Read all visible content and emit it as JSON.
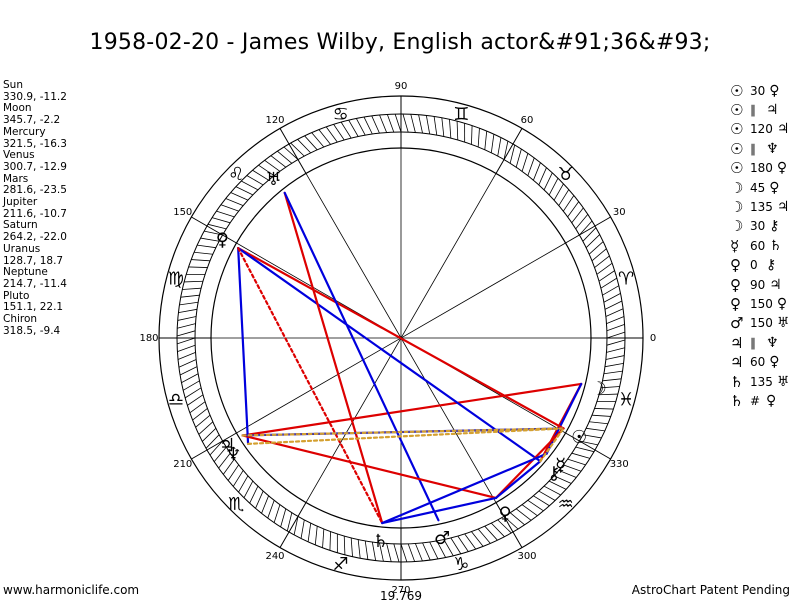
{
  "title": "1958-02-20 - James Wilby, English actor&#91;36&#93;",
  "planets": [
    {
      "name": "Sun",
      "pos": "330.9, -11.2"
    },
    {
      "name": "Moon",
      "pos": "345.7, -2.2"
    },
    {
      "name": "Mercury",
      "pos": "321.5, -16.3"
    },
    {
      "name": "Venus",
      "pos": "300.7, -12.9"
    },
    {
      "name": "Mars",
      "pos": "281.6, -23.5"
    },
    {
      "name": "Jupiter",
      "pos": "211.6, -10.7"
    },
    {
      "name": "Saturn",
      "pos": "264.2, -22.0"
    },
    {
      "name": "Uranus",
      "pos": "128.7, 18.7"
    },
    {
      "name": "Neptune",
      "pos": "214.7, -11.4"
    },
    {
      "name": "Pluto",
      "pos": "151.1, 22.1"
    },
    {
      "name": "Chiron",
      "pos": "318.5, -9.4"
    }
  ],
  "aspects": [
    {
      "p1": "☉",
      "asp": "30",
      "p2": "♀"
    },
    {
      "p1": "☉",
      "asp": "∥",
      "p2": "♃"
    },
    {
      "p1": "☉",
      "asp": "120",
      "p2": "♃"
    },
    {
      "p1": "☉",
      "asp": "∥",
      "p2": "♆"
    },
    {
      "p1": "☉",
      "asp": "180",
      "p2": "♀"
    },
    {
      "p1": "☽",
      "asp": "45",
      "p2": "♀"
    },
    {
      "p1": "☽",
      "asp": "135",
      "p2": "♃"
    },
    {
      "p1": "☽",
      "asp": "30",
      "p2": "⚷"
    },
    {
      "p1": "☿",
      "asp": "60",
      "p2": "♄"
    },
    {
      "p1": "♀",
      "asp": "0",
      "p2": "⚷"
    },
    {
      "p1": "♀",
      "asp": "90",
      "p2": "♃"
    },
    {
      "p1": "♀",
      "asp": "150",
      "p2": "♀"
    },
    {
      "p1": "♂",
      "asp": "150",
      "p2": "♅"
    },
    {
      "p1": "♃",
      "asp": "∥",
      "p2": "♆"
    },
    {
      "p1": "♃",
      "asp": "60",
      "p2": "♀"
    },
    {
      "p1": "♄",
      "asp": "135",
      "p2": "♅"
    },
    {
      "p1": "♄",
      "asp": "#",
      "p2": "♀"
    }
  ],
  "footer": {
    "left": "www.harmoniclife.com",
    "right": "AstroChart Patent Pending"
  },
  "chart_data": {
    "type": "scatter",
    "subtype": "astrological-wheel",
    "degree_labels": [
      "0",
      "30",
      "60",
      "90",
      "120",
      "150",
      "180",
      "210",
      "240",
      "270",
      "300",
      "330"
    ],
    "zodiac_signs": [
      {
        "glyph": "♈",
        "start": 0
      },
      {
        "glyph": "♉",
        "start": 30
      },
      {
        "glyph": "♊",
        "start": 60
      },
      {
        "glyph": "♋",
        "start": 90
      },
      {
        "glyph": "♌",
        "start": 120
      },
      {
        "glyph": "♍",
        "start": 150
      },
      {
        "glyph": "♎",
        "start": 180
      },
      {
        "glyph": "♏",
        "start": 210
      },
      {
        "glyph": "♐",
        "start": 240
      },
      {
        "glyph": "♑",
        "start": 270
      },
      {
        "glyph": "♒",
        "start": 300
      },
      {
        "glyph": "♓",
        "start": 330
      }
    ],
    "bodies": [
      {
        "name": "Sun",
        "glyph": "☉",
        "lon": 330.9
      },
      {
        "name": "Moon",
        "glyph": "☽",
        "lon": 345.7
      },
      {
        "name": "Mercury",
        "glyph": "☿",
        "lon": 321.5
      },
      {
        "name": "Venus",
        "glyph": "♀",
        "lon": 300.7
      },
      {
        "name": "Mars",
        "glyph": "♂",
        "lon": 281.6
      },
      {
        "name": "Jupiter",
        "glyph": "♃",
        "lon": 211.6
      },
      {
        "name": "Saturn",
        "glyph": "♄",
        "lon": 264.2
      },
      {
        "name": "Uranus",
        "glyph": "♅",
        "lon": 128.7
      },
      {
        "name": "Neptune",
        "glyph": "♆",
        "lon": 214.7
      },
      {
        "name": "Pluto",
        "glyph": "♀",
        "lon": 151.1
      },
      {
        "name": "Chiron",
        "glyph": "⚷",
        "lon": 318.5
      }
    ],
    "aspect_lines": [
      {
        "a": "Moon",
        "b": "Jupiter",
        "color": "#dd0000",
        "style": "solid"
      },
      {
        "a": "Moon",
        "b": "Chiron",
        "color": "#dd0000",
        "style": "solid"
      },
      {
        "a": "Moon",
        "b": "Mercury",
        "color": "#0000dd",
        "style": "solid"
      },
      {
        "a": "Pluto",
        "b": "Sun",
        "color": "#dd0000",
        "style": "solid"
      },
      {
        "a": "Pluto",
        "b": "Neptune",
        "color": "#0000dd",
        "style": "solid"
      },
      {
        "a": "Pluto",
        "b": "Chiron",
        "color": "#0000dd",
        "style": "solid"
      },
      {
        "a": "Pluto",
        "b": "Saturn",
        "color": "#dd0000",
        "style": "dashed"
      },
      {
        "a": "Uranus",
        "b": "Saturn",
        "color": "#dd0000",
        "style": "solid"
      },
      {
        "a": "Uranus",
        "b": "Mars",
        "color": "#0000dd",
        "style": "solid"
      },
      {
        "a": "Jupiter",
        "b": "Venus",
        "color": "#dd0000",
        "style": "solid"
      },
      {
        "a": "Jupiter",
        "b": "Sun",
        "color": "#0000dd",
        "style": "solid"
      },
      {
        "a": "Jupiter",
        "b": "Sun",
        "color": "#d4a030",
        "style": "dashed"
      },
      {
        "a": "Neptune",
        "b": "Sun",
        "color": "#d4a030",
        "style": "dashed"
      },
      {
        "a": "Venus",
        "b": "Sun",
        "color": "#dd0000",
        "style": "solid"
      },
      {
        "a": "Venus",
        "b": "Chiron",
        "color": "#0000dd",
        "style": "solid"
      },
      {
        "a": "Saturn",
        "b": "Venus",
        "color": "#0000dd",
        "style": "solid"
      },
      {
        "a": "Saturn",
        "b": "Mercury",
        "color": "#0000dd",
        "style": "solid"
      },
      {
        "a": "Chiron",
        "b": "Sun",
        "color": "#d4a030",
        "style": "dashed"
      }
    ],
    "bottom_label": "19,769"
  }
}
